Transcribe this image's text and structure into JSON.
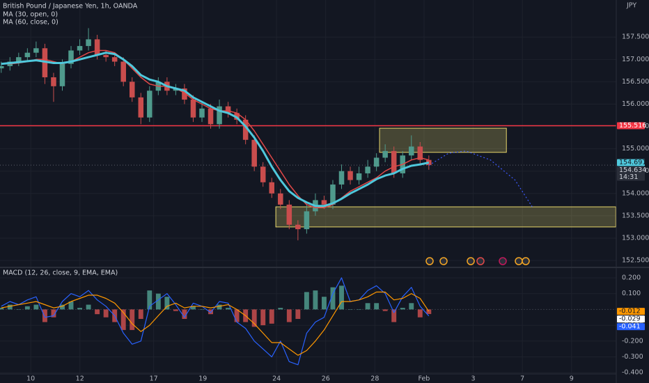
{
  "chart_data": [
    {
      "type": "candlestick",
      "title": "British Pound / Japanese Yen, 1h, OANDA",
      "currency": "JPY",
      "countdown": "14:31",
      "up_color": "#4f9a8c",
      "down_color": "#c94d4d",
      "x": [
        -0.2,
        0.155,
        0.51,
        0.865,
        1.22,
        1.575,
        1.93,
        2.285,
        2.64,
        2.995,
        3.35,
        3.705,
        4.06,
        4.415,
        4.77,
        5.125,
        5.48,
        5.835,
        6.19,
        6.545,
        6.9,
        7.255,
        7.61,
        7.965,
        8.32,
        8.675,
        9.03,
        9.385,
        9.74,
        10.095,
        10.45,
        10.805,
        11.16,
        11.515,
        11.87,
        12.225,
        12.58,
        12.935,
        13.29,
        13.645,
        14.0,
        14.355,
        14.71,
        15.065,
        15.42,
        15.775,
        16.13,
        16.485,
        16.84,
        17.195
      ],
      "open": [
        156.8,
        156.85,
        156.95,
        157.05,
        157.15,
        157.25,
        156.6,
        156.4,
        156.9,
        157.2,
        157.3,
        157.45,
        157.1,
        157.05,
        156.95,
        156.5,
        156.15,
        155.7,
        156.3,
        156.5,
        156.3,
        156.35,
        156.1,
        155.7,
        155.9,
        155.55,
        155.95,
        155.8,
        155.65,
        155.2,
        154.6,
        154.25,
        154.0,
        153.75,
        153.3,
        153.2,
        153.6,
        153.85,
        153.75,
        154.2,
        154.5,
        154.3,
        154.45,
        154.6,
        154.8,
        154.95,
        154.45,
        154.85,
        155.05,
        154.75
      ],
      "high": [
        156.95,
        157.05,
        157.15,
        157.25,
        157.4,
        157.35,
        156.7,
        157.0,
        157.3,
        157.45,
        157.7,
        157.55,
        157.2,
        157.15,
        157.05,
        156.6,
        156.25,
        156.4,
        156.6,
        156.6,
        156.45,
        156.45,
        156.2,
        156.05,
        156.0,
        156.1,
        156.05,
        155.9,
        155.75,
        155.3,
        154.7,
        154.35,
        154.1,
        153.85,
        153.4,
        153.75,
        154.0,
        153.95,
        154.3,
        154.65,
        154.6,
        154.6,
        154.75,
        154.9,
        155.1,
        155.05,
        154.95,
        155.3,
        155.15,
        154.85
      ],
      "low": [
        156.7,
        156.75,
        156.85,
        156.95,
        157.05,
        156.45,
        156.05,
        156.3,
        156.8,
        157.1,
        157.2,
        157.0,
        156.95,
        156.85,
        156.4,
        156.05,
        155.55,
        155.6,
        156.2,
        156.2,
        156.2,
        156.0,
        155.6,
        155.6,
        155.45,
        155.45,
        155.7,
        155.55,
        155.1,
        154.5,
        154.15,
        153.9,
        153.65,
        153.2,
        152.95,
        153.1,
        153.5,
        153.65,
        153.65,
        154.1,
        154.2,
        154.2,
        154.35,
        154.5,
        154.7,
        154.35,
        154.35,
        154.75,
        154.65,
        154.53
      ],
      "close": [
        156.85,
        156.95,
        157.05,
        157.15,
        157.25,
        156.6,
        156.4,
        156.9,
        157.2,
        157.3,
        157.45,
        157.1,
        157.05,
        156.95,
        156.5,
        156.15,
        155.7,
        156.3,
        156.5,
        156.3,
        156.35,
        156.1,
        155.7,
        155.9,
        155.55,
        155.95,
        155.8,
        155.65,
        155.2,
        154.6,
        154.25,
        154.0,
        153.75,
        153.3,
        153.2,
        153.6,
        153.85,
        153.75,
        154.2,
        154.5,
        154.3,
        154.45,
        154.6,
        154.8,
        154.95,
        154.45,
        154.85,
        155.05,
        154.75,
        154.634
      ],
      "overlays": [
        {
          "name": "MA (30, open, 0)",
          "color": "#e04848",
          "width": 1.5,
          "values": [
            156.9,
            156.9,
            156.92,
            156.95,
            157.0,
            157.0,
            156.95,
            156.9,
            156.95,
            157.05,
            157.15,
            157.2,
            157.2,
            157.15,
            157.0,
            156.8,
            156.6,
            156.45,
            156.4,
            156.4,
            156.35,
            156.25,
            156.1,
            156.0,
            155.9,
            155.85,
            155.85,
            155.8,
            155.65,
            155.4,
            155.1,
            154.8,
            154.5,
            154.2,
            153.95,
            153.75,
            153.68,
            153.68,
            153.75,
            153.9,
            154.05,
            154.15,
            154.25,
            154.35,
            154.5,
            154.6,
            154.65,
            154.75,
            154.8,
            154.75
          ]
        },
        {
          "name": "MA (60, close, 0)",
          "color": "#4fc8dc",
          "width": 3,
          "values": [
            156.9,
            156.92,
            156.94,
            156.96,
            156.98,
            156.95,
            156.92,
            156.92,
            156.95,
            157.0,
            157.05,
            157.1,
            157.15,
            157.12,
            157.0,
            156.85,
            156.65,
            156.55,
            156.5,
            156.4,
            156.35,
            156.3,
            156.15,
            156.05,
            155.95,
            155.85,
            155.8,
            155.7,
            155.5,
            155.25,
            154.95,
            154.6,
            154.3,
            154.05,
            153.9,
            153.8,
            153.72,
            153.72,
            153.78,
            153.88,
            154.0,
            154.1,
            154.2,
            154.32,
            154.4,
            154.45,
            154.55,
            154.62,
            154.65,
            154.691
          ]
        }
      ],
      "hline": {
        "value": 155.516,
        "color": "#f23645"
      },
      "zones": [
        {
          "x": [
            15.19,
            20.35
          ],
          "y": [
            154.92,
            155.46
          ]
        },
        {
          "x": [
            10.97,
            24.8
          ],
          "y": [
            153.25,
            153.7
          ]
        }
      ],
      "projection": {
        "x": [
          17.2,
          18.0,
          18.7,
          19.7,
          20.7,
          21.4
        ],
        "y": [
          154.63,
          154.9,
          154.95,
          154.75,
          154.3,
          153.7
        ],
        "color": "#3d5afe"
      },
      "xlim": [
        -0.25,
        24.82
      ],
      "ylim": [
        152.36,
        158.33
      ],
      "xticks": [
        {
          "value": 1,
          "label": "10"
        },
        {
          "value": 3,
          "label": "12"
        },
        {
          "value": 6,
          "label": "17"
        },
        {
          "value": 8,
          "label": "19"
        },
        {
          "value": 11,
          "label": "24"
        },
        {
          "value": 13,
          "label": "26"
        },
        {
          "value": 15,
          "label": "28"
        },
        {
          "value": 17,
          "label": "Feb"
        },
        {
          "value": 19,
          "label": "3"
        },
        {
          "value": 21,
          "label": "7"
        },
        {
          "value": 23,
          "label": "9"
        }
      ],
      "yticks": [
        {
          "value": 152.5,
          "label": "152.500"
        },
        {
          "value": 153,
          "label": "153.000"
        },
        {
          "value": 153.5,
          "label": "153.500"
        },
        {
          "value": 154,
          "label": "154.000"
        },
        {
          "value": 154.5,
          "label": "154.500"
        },
        {
          "value": 155,
          "label": "155.000"
        },
        {
          "value": 155.5,
          "label": "155.500"
        },
        {
          "value": 156,
          "label": "156.000"
        },
        {
          "value": 156.5,
          "label": "156.500"
        },
        {
          "value": 157,
          "label": "157.000"
        },
        {
          "value": 157.5,
          "label": "157.500"
        }
      ],
      "grid": true
    },
    {
      "type": "macd",
      "title": "MACD (12, 26, close, 9, EMA, EMA)",
      "x": [
        -0.2,
        0.155,
        0.51,
        0.865,
        1.22,
        1.575,
        1.93,
        2.285,
        2.64,
        2.995,
        3.35,
        3.705,
        4.06,
        4.415,
        4.77,
        5.125,
        5.48,
        5.835,
        6.19,
        6.545,
        6.9,
        7.255,
        7.61,
        7.965,
        8.32,
        8.675,
        9.03,
        9.385,
        9.74,
        10.095,
        10.45,
        10.805,
        11.16,
        11.515,
        11.87,
        12.225,
        12.58,
        12.935,
        13.29,
        13.645,
        14.0,
        14.355,
        14.71,
        15.065,
        15.42,
        15.775,
        16.13,
        16.485,
        16.84,
        17.195
      ],
      "histogram": {
        "up_color": "#4f9a8c",
        "down_color": "#c94d4d",
        "values": [
          0.01,
          0.03,
          0.0,
          0.02,
          0.03,
          -0.08,
          -0.05,
          0.03,
          0.05,
          0.01,
          0.03,
          -0.03,
          -0.05,
          -0.08,
          -0.13,
          -0.13,
          -0.06,
          0.12,
          0.1,
          0.08,
          -0.01,
          -0.06,
          0.02,
          0.0,
          -0.03,
          0.03,
          0.01,
          -0.08,
          -0.08,
          -0.11,
          -0.1,
          -0.09,
          0.01,
          -0.08,
          -0.06,
          0.11,
          0.12,
          0.08,
          0.14,
          0.15,
          0.0,
          0.0,
          0.04,
          0.04,
          -0.01,
          -0.08,
          0.01,
          0.04,
          -0.05,
          -0.029
        ]
      },
      "macd": {
        "color": "#2962ff",
        "values": [
          0.02,
          0.05,
          0.03,
          0.06,
          0.08,
          -0.05,
          -0.04,
          0.05,
          0.1,
          0.08,
          0.12,
          0.06,
          0.02,
          -0.04,
          -0.15,
          -0.22,
          -0.2,
          0.02,
          0.06,
          0.1,
          0.03,
          -0.05,
          0.04,
          0.02,
          -0.02,
          0.05,
          0.04,
          -0.08,
          -0.12,
          -0.2,
          -0.25,
          -0.3,
          -0.2,
          -0.33,
          -0.35,
          -0.15,
          -0.08,
          -0.05,
          0.1,
          0.2,
          0.05,
          0.06,
          0.12,
          0.15,
          0.1,
          -0.02,
          0.08,
          0.14,
          0.02,
          -0.041
        ]
      },
      "signal": {
        "color": "#ff9800",
        "values": [
          0.01,
          0.02,
          0.03,
          0.04,
          0.05,
          0.03,
          0.01,
          0.02,
          0.05,
          0.07,
          0.09,
          0.09,
          0.07,
          0.04,
          -0.02,
          -0.09,
          -0.14,
          -0.1,
          -0.04,
          0.02,
          0.04,
          0.01,
          0.02,
          0.02,
          0.01,
          0.02,
          0.03,
          0.0,
          -0.04,
          -0.09,
          -0.15,
          -0.21,
          -0.21,
          -0.25,
          -0.29,
          -0.26,
          -0.2,
          -0.13,
          -0.04,
          0.05,
          0.05,
          0.06,
          0.08,
          0.11,
          0.11,
          0.06,
          0.07,
          0.1,
          0.07,
          -0.012
        ]
      },
      "xlim": [
        -0.25,
        24.82
      ],
      "ylim": [
        -0.408,
        0.257
      ],
      "yticks": [
        {
          "value": -0.4,
          "label": "-0.400"
        },
        {
          "value": -0.3,
          "label": "-0.300"
        },
        {
          "value": -0.2,
          "label": "-0.200"
        },
        {
          "value": -0.1,
          "label": "-0.100"
        },
        {
          "value": 0.1,
          "label": "0.100"
        },
        {
          "value": 0.2,
          "label": "0.200"
        }
      ],
      "grid": true
    }
  ]
}
